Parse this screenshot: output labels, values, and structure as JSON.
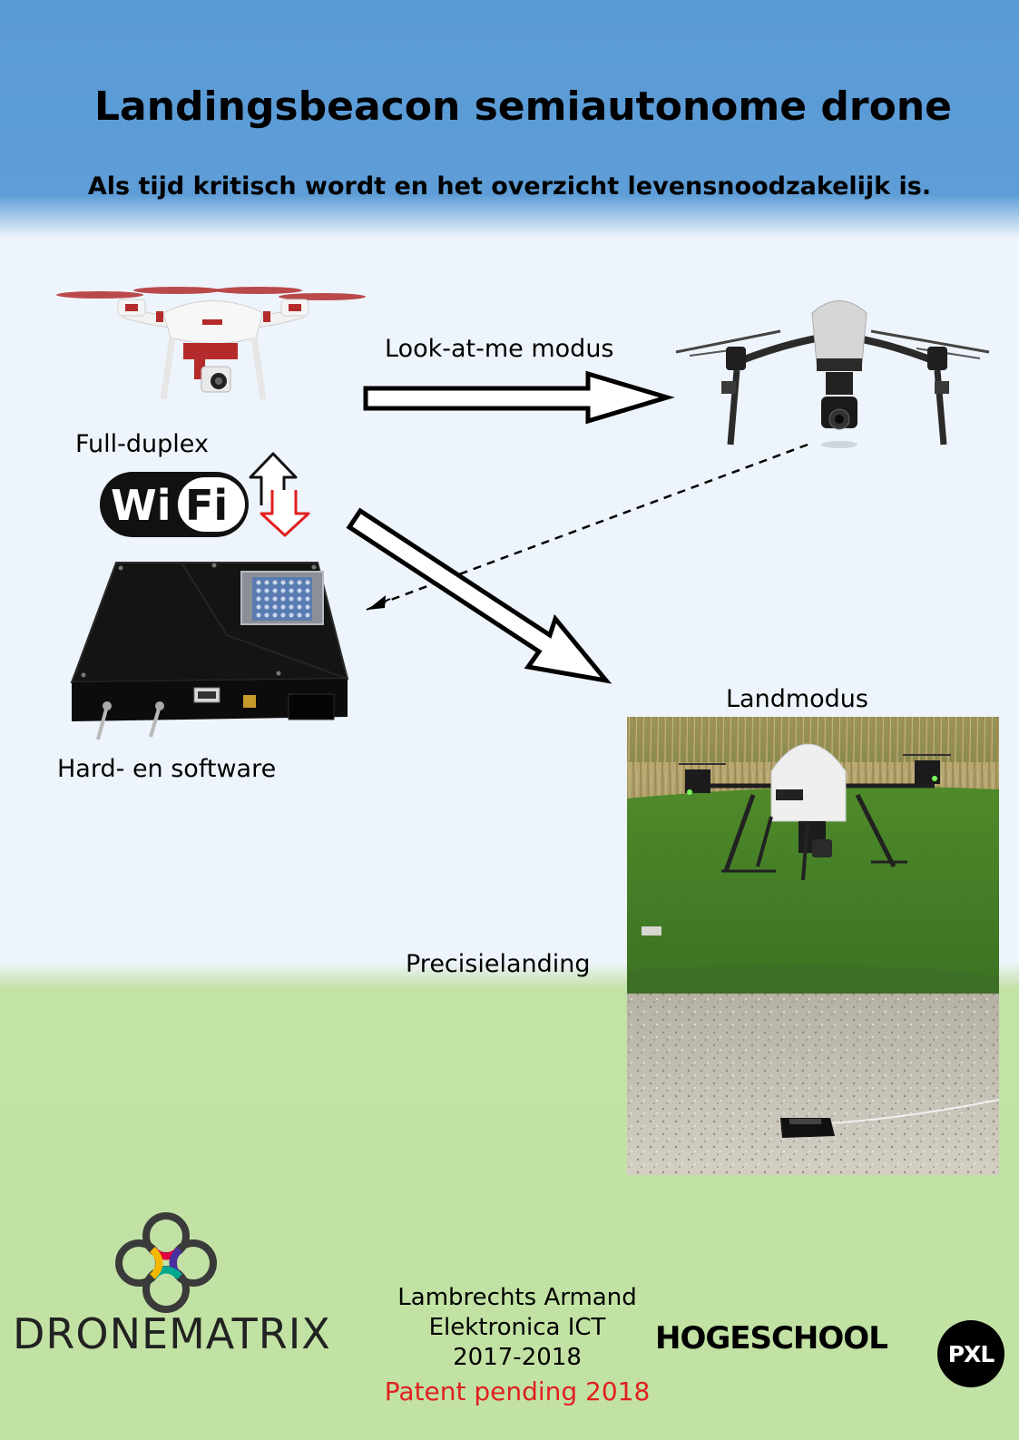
{
  "header": {
    "title": "Landingsbeacon semiautonome drone",
    "subtitle": "Als tijd kritisch wordt en het overzicht levensnoodzakelijk is."
  },
  "labels": {
    "look_at_me": "Look-at-me modus",
    "full_duplex": "Full-duplex",
    "hardware": "Hard- en software",
    "landmodus": "Landmodus",
    "precisielanding": "Precisielanding"
  },
  "wifi_logo": {
    "wi": "Wi",
    "fi": "Fi"
  },
  "credits": {
    "name": "Lambrechts Armand",
    "program": "Elektronica ICT",
    "years": "2017-2018",
    "patent": "Patent pending 2018"
  },
  "logos": {
    "dronematrix": "DRONEMATRIX",
    "hogeschool": "HOGESCHOOL",
    "pxl": "PXL"
  },
  "colors": {
    "header_blue": "#5a9ad6",
    "body_bg": "#eef4fb",
    "footer_green": "#c1e2a4",
    "patent_red": "#e02020",
    "arrow_red": "#e02020"
  }
}
